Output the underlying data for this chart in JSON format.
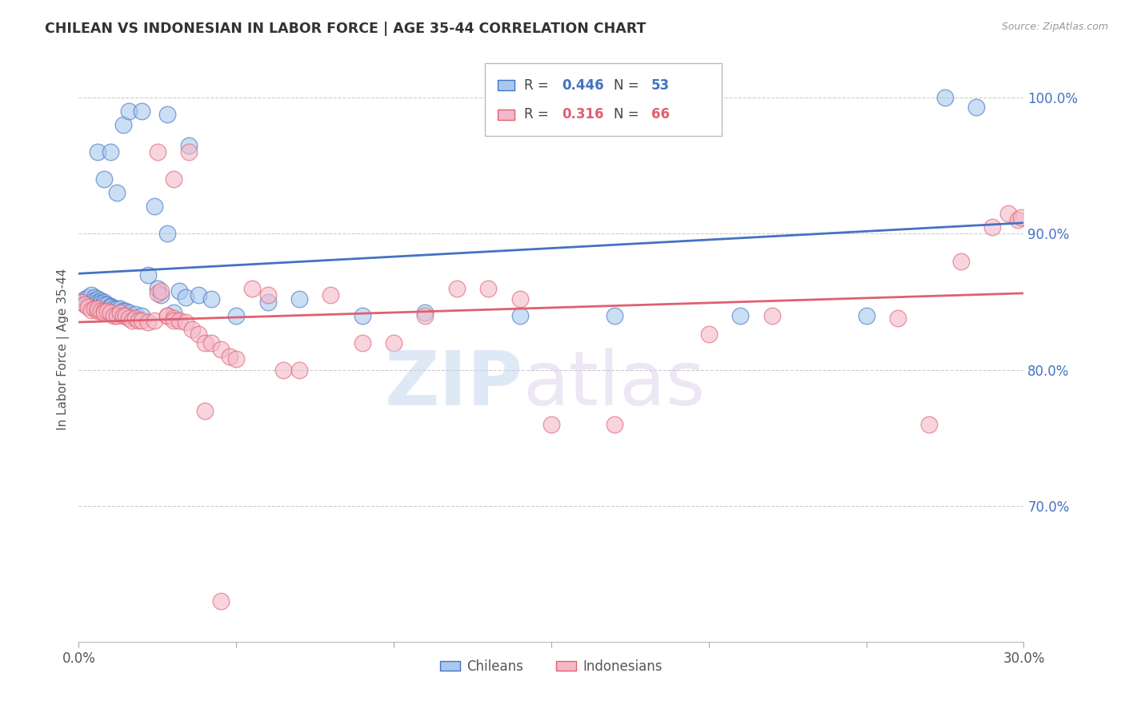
{
  "title": "CHILEAN VS INDONESIAN IN LABOR FORCE | AGE 35-44 CORRELATION CHART",
  "source": "Source: ZipAtlas.com",
  "ylabel": "In Labor Force | Age 35-44",
  "x_min": 0.0,
  "x_max": 0.3,
  "y_min": 0.6,
  "y_max": 1.03,
  "y_ticks": [
    0.7,
    0.8,
    0.9,
    1.0
  ],
  "y_tick_labels": [
    "70.0%",
    "80.0%",
    "90.0%",
    "100.0%"
  ],
  "blue_line_color": "#4472C4",
  "pink_line_color": "#E06070",
  "blue_scatter_facecolor": "#A8C8EE",
  "pink_scatter_facecolor": "#F4B8C8",
  "legend_blue_r": "0.446",
  "legend_blue_n": "53",
  "legend_pink_r": "0.316",
  "legend_pink_n": "66",
  "watermark_zip": "ZIP",
  "watermark_atlas": "atlas",
  "background_color": "#FFFFFF",
  "grid_color": "#CCCCCC",
  "blue_x": [
    0.001,
    0.002,
    0.003,
    0.004,
    0.005,
    0.005,
    0.006,
    0.006,
    0.007,
    0.007,
    0.008,
    0.008,
    0.009,
    0.01,
    0.01,
    0.011,
    0.012,
    0.013,
    0.014,
    0.015,
    0.016,
    0.018,
    0.02,
    0.022,
    0.025,
    0.026,
    0.028,
    0.03,
    0.032,
    0.034,
    0.038,
    0.042,
    0.05,
    0.06,
    0.07,
    0.09,
    0.11,
    0.14,
    0.17,
    0.21,
    0.25,
    0.275,
    0.285,
    0.006,
    0.008,
    0.01,
    0.012,
    0.014,
    0.016,
    0.02,
    0.024,
    0.028,
    0.035
  ],
  "blue_y": [
    0.85,
    0.852,
    0.853,
    0.855,
    0.853,
    0.851,
    0.852,
    0.85,
    0.851,
    0.849,
    0.85,
    0.848,
    0.848,
    0.847,
    0.846,
    0.845,
    0.845,
    0.845,
    0.843,
    0.843,
    0.842,
    0.841,
    0.84,
    0.87,
    0.86,
    0.855,
    0.9,
    0.842,
    0.858,
    0.853,
    0.855,
    0.852,
    0.84,
    0.85,
    0.852,
    0.84,
    0.842,
    0.84,
    0.84,
    0.84,
    0.84,
    1.0,
    0.993,
    0.96,
    0.94,
    0.96,
    0.93,
    0.98,
    0.99,
    0.99,
    0.92,
    0.988,
    0.965
  ],
  "pink_x": [
    0.001,
    0.002,
    0.003,
    0.004,
    0.005,
    0.006,
    0.006,
    0.007,
    0.008,
    0.008,
    0.009,
    0.01,
    0.011,
    0.012,
    0.013,
    0.014,
    0.015,
    0.016,
    0.017,
    0.018,
    0.019,
    0.02,
    0.022,
    0.024,
    0.025,
    0.026,
    0.028,
    0.028,
    0.03,
    0.03,
    0.032,
    0.034,
    0.036,
    0.038,
    0.04,
    0.042,
    0.045,
    0.048,
    0.05,
    0.055,
    0.06,
    0.065,
    0.07,
    0.08,
    0.09,
    0.1,
    0.11,
    0.12,
    0.13,
    0.14,
    0.15,
    0.17,
    0.2,
    0.22,
    0.26,
    0.27,
    0.28,
    0.29,
    0.295,
    0.298,
    0.299,
    0.025,
    0.03,
    0.035,
    0.04,
    0.045
  ],
  "pink_y": [
    0.85,
    0.848,
    0.846,
    0.844,
    0.845,
    0.843,
    0.845,
    0.843,
    0.843,
    0.842,
    0.843,
    0.842,
    0.84,
    0.84,
    0.842,
    0.84,
    0.84,
    0.838,
    0.836,
    0.838,
    0.836,
    0.836,
    0.835,
    0.836,
    0.856,
    0.858,
    0.84,
    0.84,
    0.838,
    0.836,
    0.836,
    0.835,
    0.83,
    0.826,
    0.82,
    0.82,
    0.815,
    0.81,
    0.808,
    0.86,
    0.855,
    0.8,
    0.8,
    0.855,
    0.82,
    0.82,
    0.84,
    0.86,
    0.86,
    0.852,
    0.76,
    0.76,
    0.826,
    0.84,
    0.838,
    0.76,
    0.88,
    0.905,
    0.915,
    0.91,
    0.912,
    0.96,
    0.94,
    0.96,
    0.77,
    0.63
  ]
}
